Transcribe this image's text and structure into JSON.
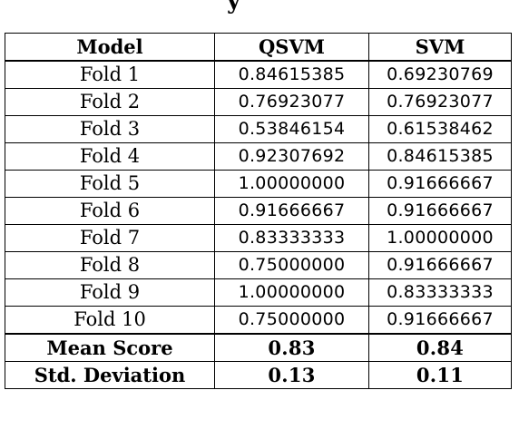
{
  "title_fragment": "y",
  "table": {
    "headers": [
      "Model",
      "QSVM",
      "SVM"
    ],
    "rows": [
      {
        "label": "Fold 1",
        "qsvm": "0.84615385",
        "svm": "0.69230769"
      },
      {
        "label": "Fold 2",
        "qsvm": "0.76923077",
        "svm": "0.76923077"
      },
      {
        "label": "Fold 3",
        "qsvm": "0.53846154",
        "svm": "0.61538462"
      },
      {
        "label": "Fold 4",
        "qsvm": "0.92307692",
        "svm": "0.84615385"
      },
      {
        "label": "Fold 5",
        "qsvm": "1.00000000",
        "svm": "0.91666667"
      },
      {
        "label": "Fold 6",
        "qsvm": "0.91666667",
        "svm": "0.91666667"
      },
      {
        "label": "Fold 7",
        "qsvm": "0.83333333",
        "svm": "1.00000000"
      },
      {
        "label": "Fold 8",
        "qsvm": "0.75000000",
        "svm": "0.91666667"
      },
      {
        "label": "Fold 9",
        "qsvm": "1.00000000",
        "svm": "0.83333333"
      },
      {
        "label": "Fold 10",
        "qsvm": "0.75000000",
        "svm": "0.91666667"
      }
    ],
    "summary": [
      {
        "label": "Mean Score",
        "qsvm": "0.83",
        "svm": "0.84"
      },
      {
        "label": "Std. Deviation",
        "qsvm": "0.13",
        "svm": "0.11"
      }
    ]
  }
}
